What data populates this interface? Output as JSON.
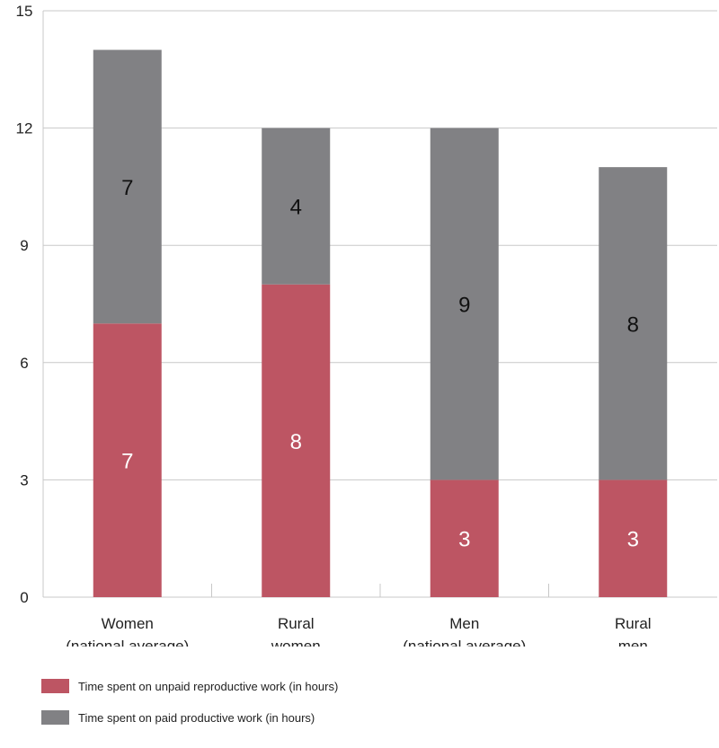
{
  "chart_data": {
    "type": "bar",
    "stacked": true,
    "categories": [
      [
        "Women",
        "(national average)"
      ],
      [
        "Rural",
        "women"
      ],
      [
        "Men",
        "(national average)"
      ],
      [
        "Rural",
        "men"
      ]
    ],
    "series": [
      {
        "name": "Time spent on unpaid reproductive work (in hours)",
        "values": [
          7,
          8,
          3,
          3
        ],
        "color": "#bd5563",
        "label_color": "#ffffff"
      },
      {
        "name": "Time spent on paid productive work (in hours)",
        "values": [
          7,
          4,
          9,
          8
        ],
        "color": "#818184",
        "label_color": "#111111"
      }
    ],
    "ylim": [
      0,
      15
    ],
    "yticks": [
      0,
      3,
      6,
      9,
      12,
      15
    ],
    "grid": true,
    "legend_position": "bottom-left"
  }
}
